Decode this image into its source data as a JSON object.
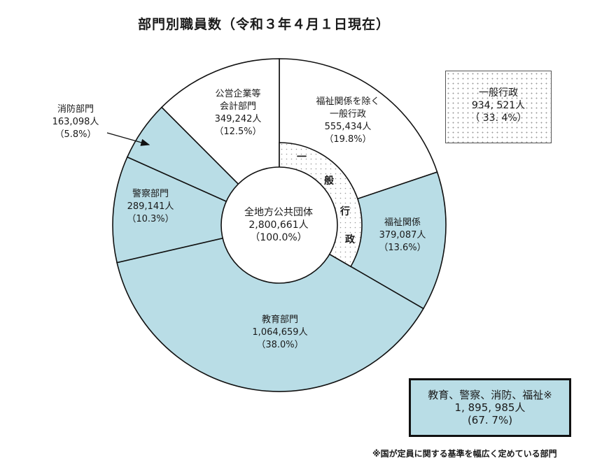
{
  "title": "部門別職員数（令和３年４月１日現在）",
  "colors": {
    "designated_fill": "#b9dde6",
    "other_fill": "#ffffff",
    "stipple_dot": "#9a9a9a",
    "outline": "#111111"
  },
  "center": {
    "name": "全地方公共団体",
    "count": "2,800,661人",
    "pct": "（100.0%）"
  },
  "segments": [
    {
      "name": "福祉関係を除く",
      "name2": "一般行政",
      "count": "555,434人",
      "pct": "（19.8%）"
    },
    {
      "name": "福祉関係",
      "count": "379,087人",
      "pct": "（13.6%）"
    },
    {
      "name": "教育部門",
      "count": "1,064,659人",
      "pct": "（38.0%）"
    },
    {
      "name": "警察部門",
      "count": "289,141人",
      "pct": "（10.3%）"
    },
    {
      "name": "消防部門",
      "count": "163,098人",
      "pct": "（5.8%）"
    },
    {
      "name": "公営企業等",
      "name2": "会計部門",
      "count": "349,242人",
      "pct": "（12.5%）"
    }
  ],
  "inner_ring": {
    "chars": [
      "一",
      "般",
      "行",
      "政"
    ]
  },
  "legend_admin": {
    "label": "一般行政",
    "count": "934, 521人",
    "pct": "（ 33. 4%）"
  },
  "legend_designated": {
    "label": "教育、警察、消防、福祉※",
    "count": "1, 895, 985人",
    "pct": "(67. 7%)"
  },
  "footnote": "※国が定員に関する基準を幅広く定めている部門",
  "chart_data": {
    "type": "pie",
    "subtype": "donut",
    "title": "部門別職員数（令和３年４月１日現在）",
    "total": {
      "label": "全地方公共団体",
      "value": 2800661,
      "pct": 100.0
    },
    "categories": [
      "福祉関係を除く一般行政",
      "福祉関係",
      "教育部門",
      "警察部門",
      "消防部門",
      "公営企業等会計部門"
    ],
    "values": [
      555434,
      379087,
      1064659,
      289141,
      163098,
      349242
    ],
    "percentages": [
      19.8,
      13.6,
      38.0,
      10.3,
      5.8,
      12.5
    ],
    "groups": [
      {
        "name": "一般行政",
        "members": [
          "福祉関係を除く一般行政",
          "福祉関係"
        ],
        "value": 934521,
        "pct": 33.4,
        "style": "stippled inner ring"
      },
      {
        "name": "教育、警察、消防、福祉※",
        "members": [
          "教育部門",
          "警察部門",
          "消防部門",
          "福祉関係"
        ],
        "value": 1895985,
        "pct": 67.7,
        "style": "light blue fill"
      }
    ],
    "start_angle": "12 o'clock",
    "direction": "clockwise",
    "annotations": [
      "※国が定員に関する基準を幅広く定めている部門"
    ]
  }
}
